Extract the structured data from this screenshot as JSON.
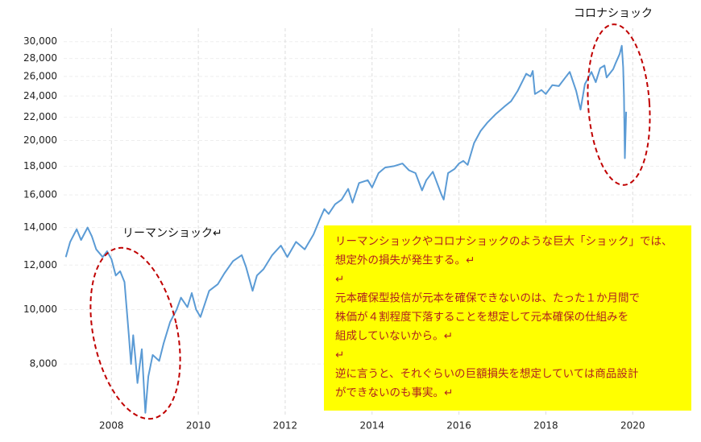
{
  "chart_data": {
    "type": "line",
    "log_scale": true,
    "grid": true,
    "x": [
      2006.95,
      2007.05,
      2007.2,
      2007.3,
      2007.45,
      2007.55,
      2007.65,
      2007.8,
      2007.9,
      2008.0,
      2008.1,
      2008.2,
      2008.3,
      2008.4,
      2008.45,
      2008.5,
      2008.55,
      2008.6,
      2008.7,
      2008.78,
      2008.85,
      2008.95,
      2009.1,
      2009.2,
      2009.35,
      2009.5,
      2009.6,
      2009.75,
      2009.85,
      2009.95,
      2010.05,
      2010.25,
      2010.45,
      2010.6,
      2010.8,
      2011.0,
      2011.1,
      2011.25,
      2011.35,
      2011.5,
      2011.7,
      2011.9,
      2012.05,
      2012.25,
      2012.45,
      2012.65,
      2012.8,
      2012.9,
      2013.0,
      2013.15,
      2013.3,
      2013.45,
      2013.55,
      2013.7,
      2013.9,
      2014.0,
      2014.15,
      2014.3,
      2014.5,
      2014.7,
      2014.85,
      2015.0,
      2015.15,
      2015.25,
      2015.4,
      2015.6,
      2015.65,
      2015.75,
      2015.9,
      2016.0,
      2016.1,
      2016.2,
      2016.35,
      2016.5,
      2016.65,
      2016.85,
      2017.05,
      2017.2,
      2017.35,
      2017.55,
      2017.65,
      2017.7,
      2017.75,
      2017.9,
      2018.0,
      2018.15,
      2018.3,
      2018.45,
      2018.55,
      2018.7,
      2018.8,
      2018.9,
      2019.05,
      2019.15,
      2019.25,
      2019.35,
      2019.4,
      2019.55,
      2019.6,
      2019.7,
      2019.75,
      2019.78,
      2019.8,
      2019.82,
      2019.85
    ],
    "series": [
      {
        "color": "#5b9bd5",
        "values": [
          12400,
          13200,
          13900,
          13300,
          14000,
          13500,
          12800,
          12400,
          12700,
          12300,
          11500,
          11700,
          11200,
          9000,
          8000,
          9000,
          8200,
          7400,
          8500,
          6550,
          7600,
          8300,
          8100,
          8700,
          9500,
          10000,
          10500,
          10100,
          10700,
          10000,
          9700,
          10800,
          11100,
          11600,
          12200,
          12500,
          11900,
          10800,
          11500,
          11800,
          12500,
          13000,
          12400,
          13200,
          12800,
          13600,
          14500,
          15100,
          14800,
          15400,
          15700,
          16400,
          15500,
          16800,
          17000,
          16500,
          17500,
          17900,
          18000,
          18200,
          17700,
          17500,
          16300,
          17000,
          17600,
          16000,
          15700,
          17500,
          17800,
          18200,
          18400,
          18100,
          19800,
          20800,
          21500,
          22300,
          23000,
          23500,
          24500,
          26300,
          26000,
          26600,
          24200,
          24600,
          24200,
          25100,
          25000,
          25900,
          26500,
          24500,
          22700,
          25200,
          26500,
          25400,
          26900,
          27200,
          25900,
          26800,
          27400,
          28500,
          29500,
          27000,
          24000,
          18600,
          22500
        ]
      }
    ],
    "xlim": [
      2006.9,
      2021.35
    ],
    "xticks": [
      2008,
      2010,
      2012,
      2014,
      2016,
      2018,
      2020
    ],
    "ylim": [
      6500,
      31700
    ],
    "yticks": [
      {
        "value": 8000,
        "label": "8,000"
      },
      {
        "value": 10000,
        "label": "10,000"
      },
      {
        "value": 12000,
        "label": "12,000"
      },
      {
        "value": 14000,
        "label": "14,000"
      },
      {
        "value": 16000,
        "label": "16,000"
      },
      {
        "value": 18000,
        "label": "18,000"
      },
      {
        "value": 20000,
        "label": "20,000"
      },
      {
        "value": 22000,
        "label": "22,000"
      },
      {
        "value": 24000,
        "label": "24,000"
      },
      {
        "value": 26000,
        "label": "26,000"
      },
      {
        "value": 28000,
        "label": "28,000"
      },
      {
        "value": 30000,
        "label": "30,000"
      }
    ],
    "annotations": [
      "コロナショック",
      "リーマンショック↵"
    ],
    "note_lines": [
      "リーマンショックやコロナショックのような巨大「ショック」では、",
      "想定外の損失が発生する。↵",
      "↵",
      "元本確保型投信が元本を確保できないのは、たった１か月間で",
      "株価が４割程度下落することを想定して元本確保の仕組みを",
      "組成していないから。↵",
      "↵",
      "逆に言うと、それぐらいの巨額損失を想定していては商品設計",
      "ができないのも事実。↵"
    ]
  }
}
